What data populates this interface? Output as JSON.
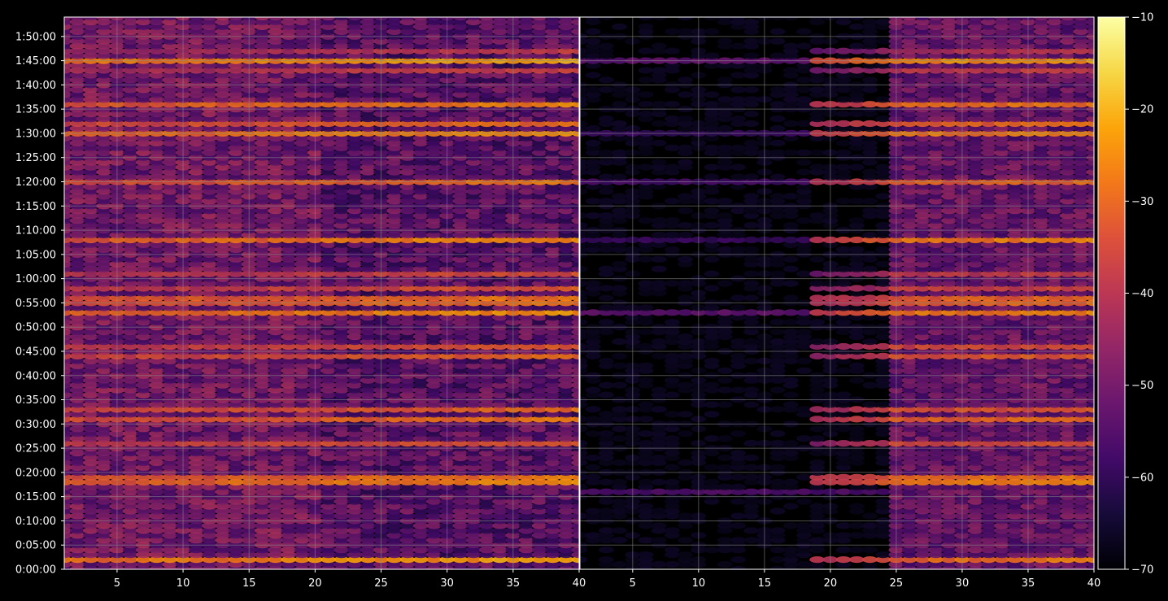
{
  "chart_data": {
    "type": "heatmap",
    "colormap": "inferno",
    "background": "#000000",
    "grid": true,
    "grid_color": "#8c8c8c",
    "panels": [
      {
        "name": "",
        "xlim": [
          1,
          40
        ],
        "x_ticks": [
          "5",
          "10",
          "15",
          "20",
          "25",
          "30",
          "35",
          "40"
        ],
        "x_tick_values": [
          5,
          10,
          15,
          20,
          25,
          30,
          35,
          40
        ],
        "base_level": -50,
        "strong_rows": [
          {
            "t": 2,
            "level": -24
          },
          {
            "t": 18,
            "level": -27
          },
          {
            "t": 19,
            "level": -29
          },
          {
            "t": 26,
            "level": -34
          },
          {
            "t": 31,
            "level": -30
          },
          {
            "t": 33,
            "level": -32
          },
          {
            "t": 44,
            "level": -32
          },
          {
            "t": 46,
            "level": -34
          },
          {
            "t": 53,
            "level": -26
          },
          {
            "t": 55.5,
            "level": -30
          },
          {
            "t": 58,
            "level": -35
          },
          {
            "t": 61,
            "level": -36
          },
          {
            "t": 68,
            "level": -27
          },
          {
            "t": 80,
            "level": -30
          },
          {
            "t": 90,
            "level": -26
          },
          {
            "t": 92,
            "level": -31
          },
          {
            "t": 96,
            "level": -28
          },
          {
            "t": 103,
            "level": -38
          },
          {
            "t": 105,
            "level": -23
          },
          {
            "t": 107,
            "level": -40
          }
        ]
      },
      {
        "name": "",
        "xlim": [
          1,
          40
        ],
        "x_ticks": [
          "5",
          "10",
          "15",
          "20",
          "25",
          "30",
          "35",
          "40"
        ],
        "x_tick_values": [
          5,
          10,
          15,
          20,
          25,
          30,
          35,
          40
        ],
        "quiet_until": 25,
        "base_level": -66,
        "strong_rows": [
          {
            "t": 2,
            "level": -30
          },
          {
            "t": 18,
            "level": -28
          },
          {
            "t": 19,
            "level": -30
          },
          {
            "t": 26,
            "level": -36
          },
          {
            "t": 31,
            "level": -32
          },
          {
            "t": 33,
            "level": -34
          },
          {
            "t": 44,
            "level": -34
          },
          {
            "t": 46,
            "level": -36
          },
          {
            "t": 53,
            "level": -28
          },
          {
            "t": 55.5,
            "level": -32
          },
          {
            "t": 58,
            "level": -38
          },
          {
            "t": 61,
            "level": -40
          },
          {
            "t": 68,
            "level": -28
          },
          {
            "t": 80,
            "level": -32
          },
          {
            "t": 90,
            "level": -28
          },
          {
            "t": 92,
            "level": -32
          },
          {
            "t": 96,
            "level": -30
          },
          {
            "t": 103,
            "level": -40
          },
          {
            "t": 105,
            "level": -25
          },
          {
            "t": 107,
            "level": -42
          }
        ],
        "faint_rows_left": [
          {
            "t": 16,
            "level": -56
          },
          {
            "t": 53,
            "level": -54
          },
          {
            "t": 68,
            "level": -60
          },
          {
            "t": 80,
            "level": -58
          },
          {
            "t": 90,
            "level": -60
          },
          {
            "t": 105,
            "level": -54
          }
        ]
      }
    ],
    "y_axis": {
      "ylim_minutes": [
        0,
        114
      ],
      "ticks": [
        "0:00:00",
        "0:05:00",
        "0:10:00",
        "0:15:00",
        "0:20:00",
        "0:25:00",
        "0:30:00",
        "0:35:00",
        "0:40:00",
        "0:45:00",
        "0:50:00",
        "0:55:00",
        "1:00:00",
        "1:05:00",
        "1:10:00",
        "1:15:00",
        "1:20:00",
        "1:25:00",
        "1:30:00",
        "1:35:00",
        "1:40:00",
        "1:45:00",
        "1:50:00"
      ],
      "tick_values_minutes": [
        0,
        5,
        10,
        15,
        20,
        25,
        30,
        35,
        40,
        45,
        50,
        55,
        60,
        65,
        70,
        75,
        80,
        85,
        90,
        95,
        100,
        105,
        110
      ]
    },
    "colorbar": {
      "range": [
        -70,
        -10
      ],
      "ticks": [
        "−10",
        "−20",
        "−30",
        "−40",
        "−50",
        "−60",
        "−70"
      ],
      "tick_values": [
        -10,
        -20,
        -30,
        -40,
        -50,
        -60,
        -70
      ]
    }
  }
}
